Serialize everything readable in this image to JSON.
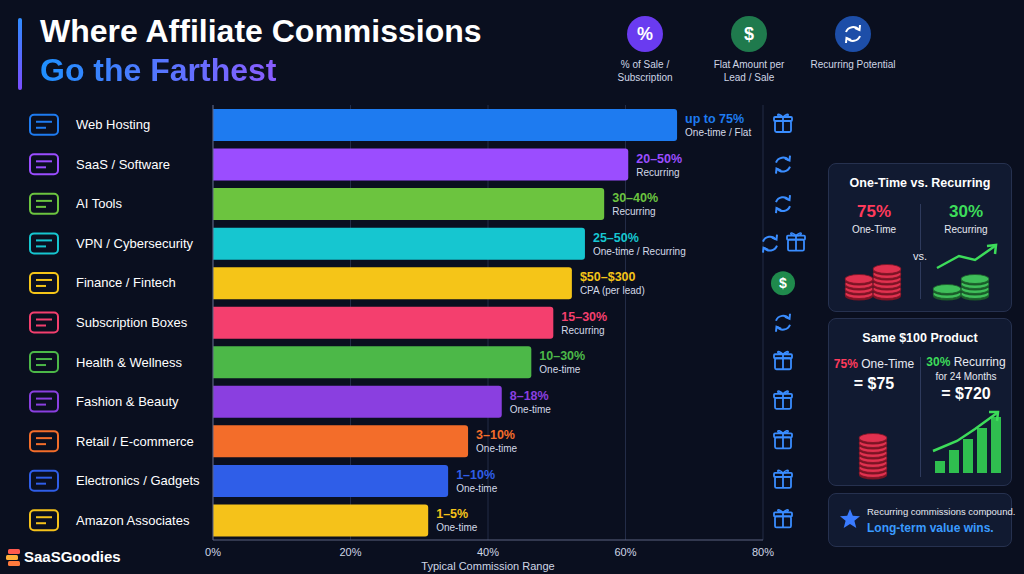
{
  "chart_data": {
    "type": "bar",
    "title": "Where Affiliate Commissions",
    "subtitle": "Go the Farthest",
    "orientation": "horizontal",
    "grid": true,
    "categories": [
      "Web Hosting",
      "SaaS / Software",
      "AI Tools",
      "VPN / Cybersecurity",
      "Finance / Fintech",
      "Subscription Boxes",
      "Health & Wellness",
      "Fashion & Beauty",
      "Retail / E-commerce",
      "Electronics / Gadgets",
      "Amazon Associates"
    ],
    "values": [
      67.5,
      60.4,
      56.9,
      54.1,
      52.2,
      49.5,
      46.3,
      42,
      37.1,
      34.2,
      31.3
    ],
    "colors": [
      "#1e7bf0",
      "#9b4dff",
      "#6cc43f",
      "#16c6d0",
      "#f5c518",
      "#f43f6e",
      "#4cb848",
      "#8a3fe0",
      "#f36d2a",
      "#2f5ee8",
      "#f5c21a"
    ],
    "range_labels": [
      "up to 75%",
      "20–50%",
      "30–40%",
      "25–50%",
      "$50–$300",
      "15–30%",
      "10–30%",
      "8–18%",
      "3–10%",
      "1–10%",
      "1–5%"
    ],
    "payout_labels": [
      "One-time / Flat",
      "Recurring",
      "Recurring",
      "One-time / Recurring",
      "CPA (per lead)",
      "Recurring",
      "One-time",
      "One-time",
      "One-time",
      "One-time",
      "One-time"
    ],
    "x_label": "Typical Commission Range",
    "xlim": [
      0,
      80
    ],
    "xticks": [
      {
        "value": 0,
        "label": "0%"
      },
      {
        "value": 20,
        "label": "20%"
      },
      {
        "value": 40,
        "label": "40%"
      },
      {
        "value": 60,
        "label": "60%"
      },
      {
        "value": 80,
        "label": "80%"
      }
    ]
  },
  "key_icons": [
    {
      "symbol": "%",
      "label": "% of Sale / Subscription"
    },
    {
      "symbol": "$",
      "label": "Flat Amount per Lead / Sale"
    },
    {
      "label": "Recurring Potential"
    }
  ],
  "panels": [
    {
      "title": "One-Time vs. Recurring",
      "left": {
        "value": "75%",
        "label": "One-Time"
      },
      "middle": "vs.",
      "right": {
        "value": "30%",
        "label": "Recurring"
      }
    },
    {
      "title": "Same $100 Product",
      "left": {
        "value": "75%",
        "label": "One-Time",
        "result": "= $75"
      },
      "right": {
        "value": "30%",
        "label": "Recurring",
        "detail": "for 24 Months",
        "result": "= $720"
      }
    }
  ],
  "note": {
    "text": "Recurring commissions compound.",
    "emphasis": "Long-term value wins."
  },
  "brand": "SaaSGoodies"
}
